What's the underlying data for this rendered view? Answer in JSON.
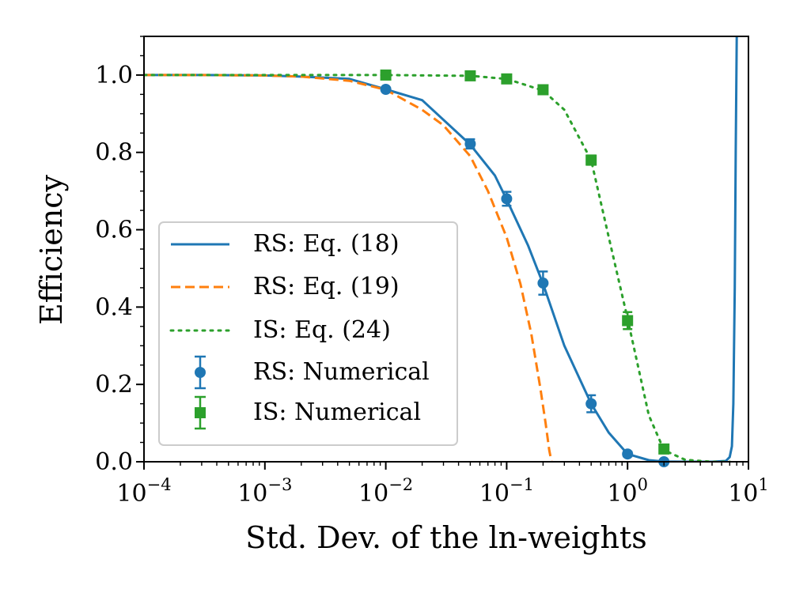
{
  "chart_data": {
    "type": "line",
    "xscale": "log",
    "xlim": [
      0.0001,
      10
    ],
    "ylim": [
      0.0,
      1.1
    ],
    "xlabel": "Std. Dev. of the ln-weights",
    "ylabel": "Efficiency",
    "xticks": [
      {
        "value": 0.0001,
        "base": "10",
        "exp": "−4"
      },
      {
        "value": 0.001,
        "base": "10",
        "exp": "−3"
      },
      {
        "value": 0.01,
        "base": "10",
        "exp": "−2"
      },
      {
        "value": 0.1,
        "base": "10",
        "exp": "−1"
      },
      {
        "value": 1,
        "base": "10",
        "exp": "0"
      },
      {
        "value": 10,
        "base": "10",
        "exp": "1"
      }
    ],
    "yticks": [
      {
        "value": 0.0,
        "label": "0.0"
      },
      {
        "value": 0.2,
        "label": "0.2"
      },
      {
        "value": 0.4,
        "label": "0.4"
      },
      {
        "value": 0.6,
        "label": "0.6"
      },
      {
        "value": 0.8,
        "label": "0.8"
      },
      {
        "value": 1.0,
        "label": "1.0"
      }
    ],
    "legend_position": "lower-left",
    "series": [
      {
        "name": "RS: Eq. (18)",
        "kind": "line",
        "style": "solid",
        "color": "#1f77b4",
        "x": [
          0.0001,
          0.0003,
          0.001,
          0.002,
          0.005,
          0.01,
          0.02,
          0.05,
          0.08,
          0.1,
          0.15,
          0.2,
          0.3,
          0.5,
          0.7,
          1.0,
          1.5,
          2.0,
          3.0,
          5.0,
          6.5,
          7.0,
          7.3,
          7.5,
          7.7,
          7.85,
          8.0
        ],
        "y": [
          1.0,
          1.0,
          0.999,
          0.996,
          0.99,
          0.963,
          0.935,
          0.82,
          0.74,
          0.678,
          0.56,
          0.46,
          0.3,
          0.15,
          0.075,
          0.02,
          0.004,
          0.0005,
          0.0,
          0.0,
          0.002,
          0.012,
          0.04,
          0.15,
          0.45,
          0.8,
          1.1
        ]
      },
      {
        "name": "RS: Eq. (19)",
        "kind": "line",
        "style": "dashed",
        "color": "#ff7f0e",
        "x": [
          0.0001,
          0.0003,
          0.001,
          0.002,
          0.005,
          0.01,
          0.02,
          0.03,
          0.05,
          0.07,
          0.1,
          0.13,
          0.16,
          0.19,
          0.21,
          0.225,
          0.235
        ],
        "y": [
          1.0,
          1.0,
          0.999,
          0.996,
          0.985,
          0.962,
          0.91,
          0.87,
          0.79,
          0.7,
          0.58,
          0.46,
          0.33,
          0.19,
          0.1,
          0.03,
          0.0
        ]
      },
      {
        "name": "IS: Eq. (24)",
        "kind": "line",
        "style": "dotted",
        "color": "#2ca02c",
        "x": [
          0.0001,
          0.001,
          0.01,
          0.05,
          0.1,
          0.2,
          0.3,
          0.5,
          0.7,
          1.0,
          1.5,
          2.0,
          3.0,
          5.0,
          7.0
        ],
        "y": [
          1.0,
          1.0,
          1.0,
          0.998,
          0.99,
          0.96,
          0.91,
          0.78,
          0.58,
          0.37,
          0.12,
          0.03,
          0.005,
          0.0,
          0.0
        ]
      },
      {
        "name": "RS: Numerical",
        "kind": "errorbar",
        "marker": "circle",
        "color": "#1f77b4",
        "points": [
          {
            "x": 0.01,
            "y": 0.963,
            "err": 0.005
          },
          {
            "x": 0.05,
            "y": 0.822,
            "err": 0.012
          },
          {
            "x": 0.1,
            "y": 0.68,
            "err": 0.018
          },
          {
            "x": 0.2,
            "y": 0.462,
            "err": 0.03
          },
          {
            "x": 0.5,
            "y": 0.15,
            "err": 0.022
          },
          {
            "x": 1.0,
            "y": 0.02,
            "err": 0.006
          },
          {
            "x": 2.0,
            "y": 0.0,
            "err": 0.002
          }
        ]
      },
      {
        "name": "IS: Numerical",
        "kind": "errorbar",
        "marker": "square",
        "color": "#2ca02c",
        "points": [
          {
            "x": 0.01,
            "y": 1.0,
            "err": 0.004
          },
          {
            "x": 0.05,
            "y": 0.998,
            "err": 0.004
          },
          {
            "x": 0.1,
            "y": 0.99,
            "err": 0.006
          },
          {
            "x": 0.2,
            "y": 0.962,
            "err": 0.008
          },
          {
            "x": 0.5,
            "y": 0.78,
            "err": 0.012
          },
          {
            "x": 1.0,
            "y": 0.365,
            "err": 0.022
          },
          {
            "x": 2.0,
            "y": 0.033,
            "err": 0.008
          }
        ]
      }
    ]
  }
}
